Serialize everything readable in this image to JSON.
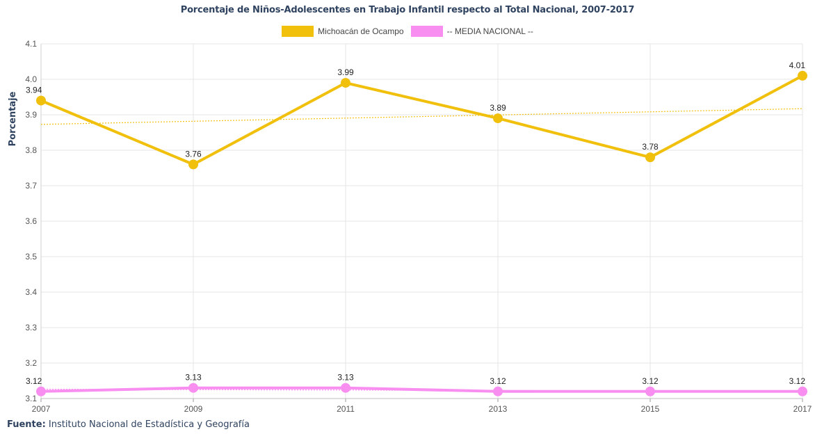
{
  "chart_data": {
    "type": "line",
    "title": "Porcentaje de Niños-Adolescentes en Trabajo Infantil respecto al Total Nacional, 2007-2017",
    "ylabel": "Porcentaje",
    "xlabel": "",
    "x": [
      "2007",
      "2009",
      "2011",
      "2013",
      "2015",
      "2017"
    ],
    "ylim": [
      3.1,
      4.1
    ],
    "yticks": [
      "3.1",
      "3.2",
      "3.3",
      "3.4",
      "3.5",
      "3.6",
      "3.7",
      "3.8",
      "3.9",
      "4.0",
      "4.1"
    ],
    "grid": true,
    "legend_position": "top-center",
    "series": [
      {
        "name": "Michoacán de Ocampo",
        "color": "#f0c00c",
        "values": [
          3.94,
          3.76,
          3.99,
          3.89,
          3.78,
          4.01
        ],
        "labels": [
          "3.94",
          "3.76",
          "3.99",
          "3.89",
          "3.78",
          "4.01"
        ],
        "trendline": true
      },
      {
        "name": "-- MEDIA NACIONAL --",
        "color": "#f78ef0",
        "values": [
          3.12,
          3.13,
          3.13,
          3.12,
          3.12,
          3.12
        ],
        "labels": [
          "3.12",
          "3.13",
          "3.13",
          "3.12",
          "3.12",
          "3.12"
        ],
        "trendline": true
      }
    ]
  },
  "footer": {
    "source_label": "Fuente:",
    "source_text": " Instituto Nacional de Estadística y Geografía"
  }
}
